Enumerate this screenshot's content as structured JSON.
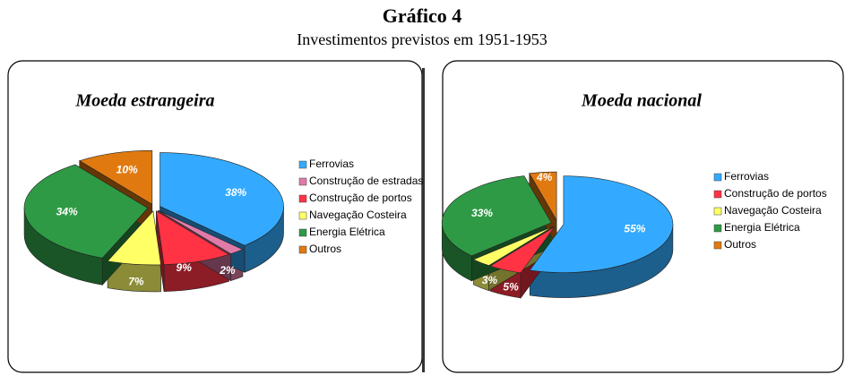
{
  "title": "Gráfico 4",
  "subtitle": "Investimentos previstos em 1951-1953",
  "chart_data": [
    {
      "type": "pie",
      "title": "Moeda estrangeira",
      "categories": [
        "Ferrovias",
        "Construção de estradas",
        "Construção de portos",
        "Navegação Costeira",
        "Energia Elétrica",
        "Outros"
      ],
      "values": [
        38,
        2,
        9,
        7,
        34,
        10
      ],
      "value_labels": [
        "38%",
        "2%",
        "9%",
        "7%",
        "34%",
        "10%"
      ],
      "colors": [
        "#33aaff",
        "#e07aa8",
        "#ff3344",
        "#ffff66",
        "#2e9a45",
        "#e07a10"
      ]
    },
    {
      "type": "pie",
      "title": "Moeda nacional",
      "categories": [
        "Ferrovias",
        "Construção de portos",
        "Navegação Costeira",
        "Energia Elétrica",
        "Outros"
      ],
      "values": [
        55,
        5,
        3,
        33,
        4
      ],
      "value_labels": [
        "55%",
        "5%",
        "3%",
        "33%",
        "4%"
      ],
      "colors": [
        "#33aaff",
        "#ff3344",
        "#ffff66",
        "#2e9a45",
        "#e07a10"
      ]
    }
  ]
}
